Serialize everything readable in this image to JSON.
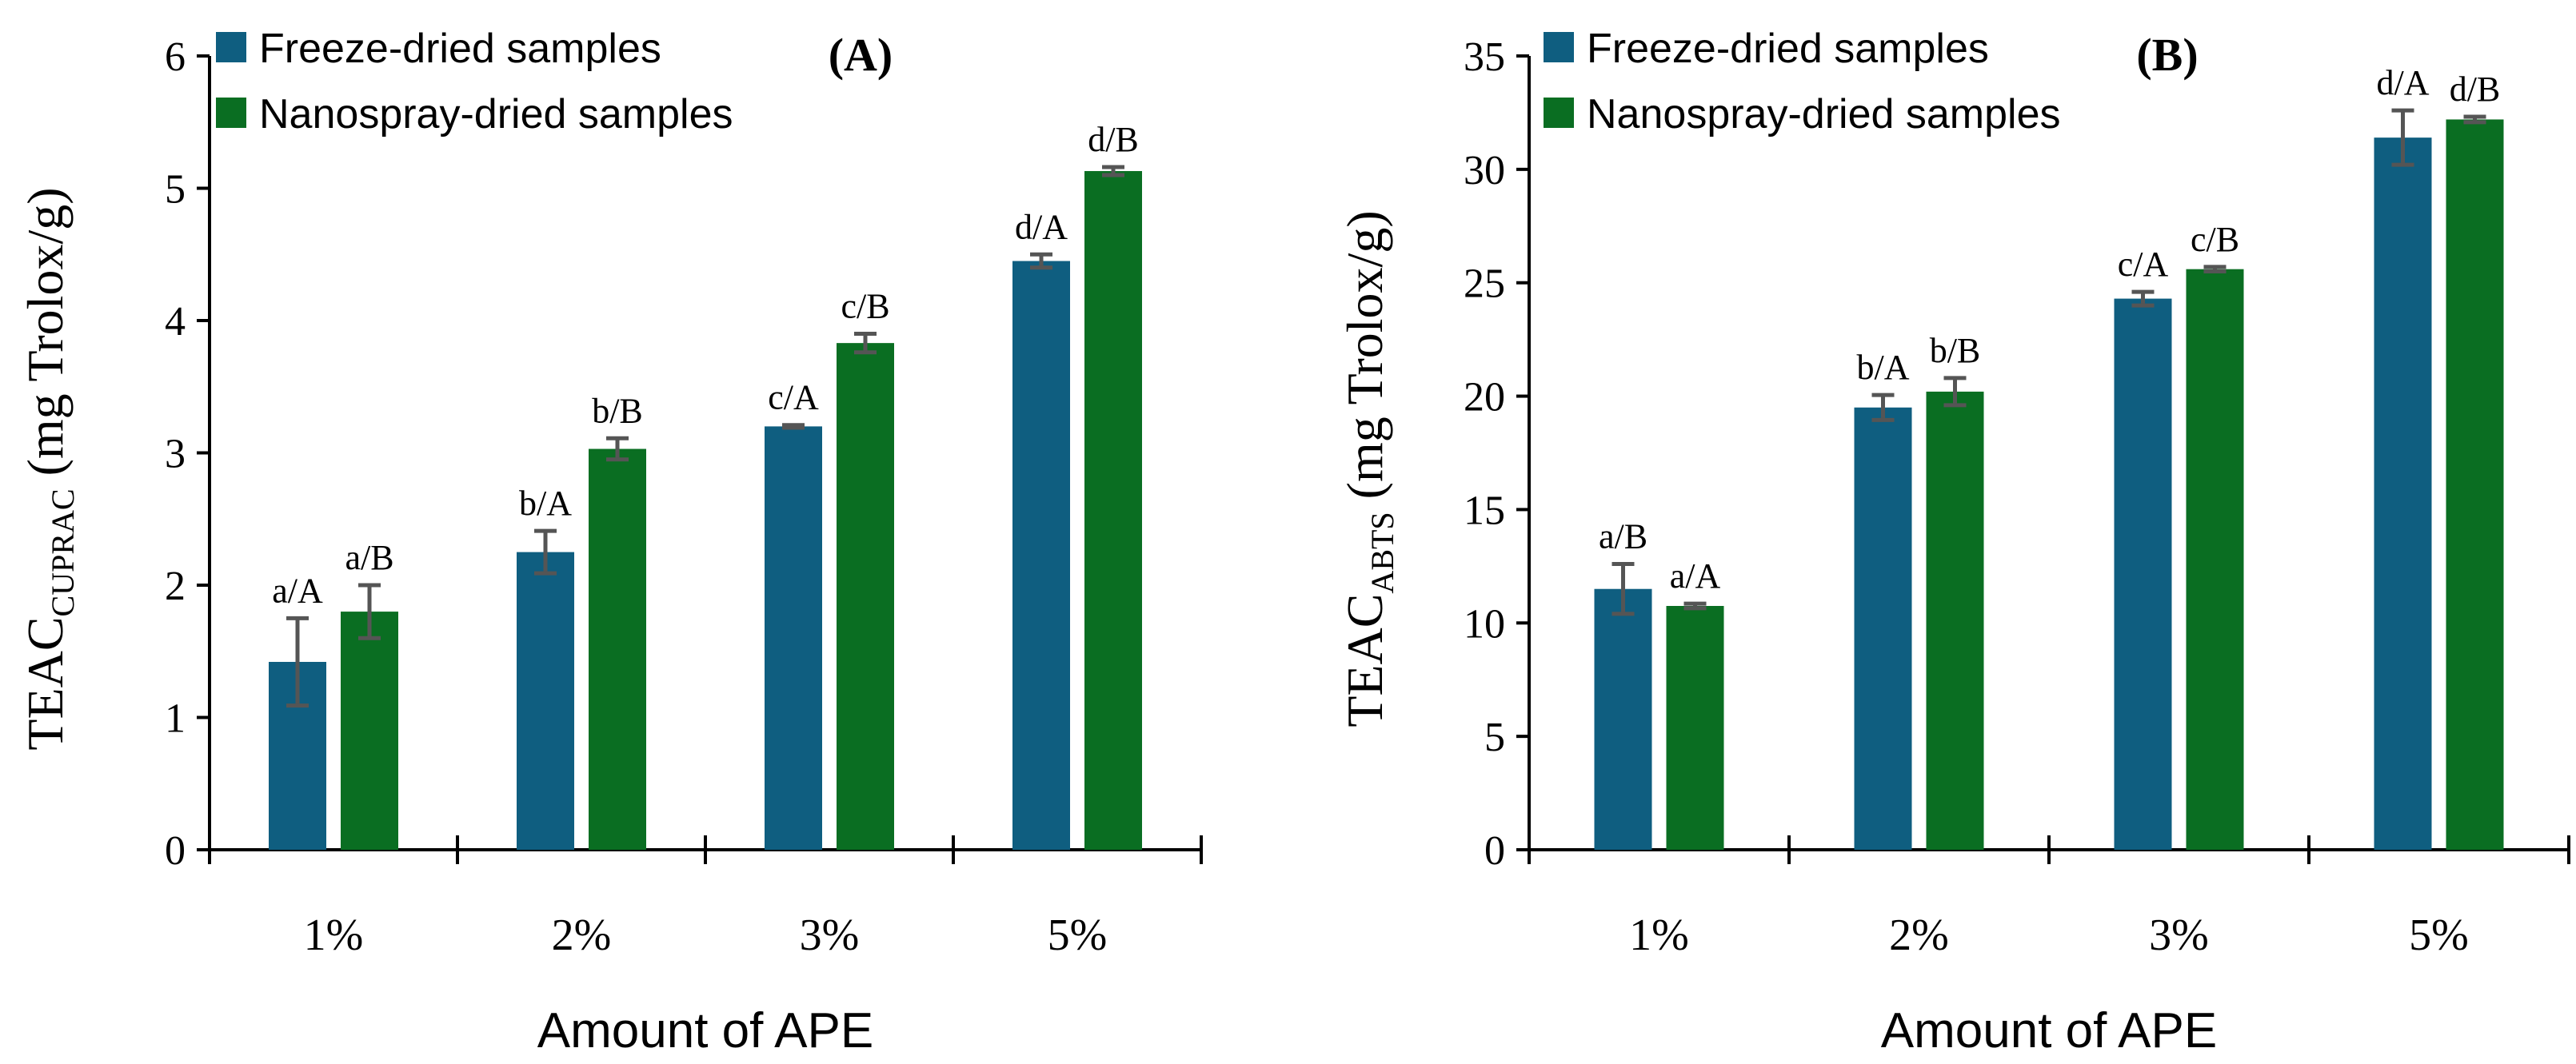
{
  "chart_data": [
    {
      "type": "bar",
      "panel": "(A)",
      "ylabel_main": "TEAC",
      "ylabel_sub": "CUPRAC",
      "ylabel_unit": " (mg Trolox/g)",
      "xlabel": "Amount of APE",
      "categories": [
        "1%",
        "2%",
        "3%",
        "5%"
      ],
      "ylim": [
        0,
        6
      ],
      "yticks": [
        0,
        1,
        2,
        3,
        4,
        5,
        6
      ],
      "legend_position": "top-left",
      "series": [
        {
          "name": "Freeze-dried samples",
          "color": "#0f5e80",
          "values": [
            1.42,
            2.25,
            3.2,
            4.45
          ],
          "errors": [
            0.33,
            0.16,
            0.01,
            0.05
          ],
          "labels": [
            "a/A",
            "b/A",
            "c/A",
            "d/A"
          ]
        },
        {
          "name": "Nanospray-dried samples",
          "color": "#0a6e22",
          "values": [
            1.8,
            3.03,
            3.83,
            5.13
          ],
          "errors": [
            0.2,
            0.08,
            0.07,
            0.03
          ],
          "labels": [
            "a/B",
            "b/B",
            "c/B",
            "d/B"
          ]
        }
      ]
    },
    {
      "type": "bar",
      "panel": "(B)",
      "ylabel_main": "TEAC",
      "ylabel_sub": "ABTS",
      "ylabel_unit": " (mg Trolox/g)",
      "xlabel": "Amount of APE",
      "categories": [
        "1%",
        "2%",
        "3%",
        "5%"
      ],
      "ylim": [
        0,
        35
      ],
      "yticks": [
        0,
        5,
        10,
        15,
        20,
        25,
        30,
        35
      ],
      "legend_position": "top-left",
      "series": [
        {
          "name": "Freeze-dried samples",
          "color": "#0f5e80",
          "values": [
            11.5,
            19.5,
            24.3,
            31.4
          ],
          "errors": [
            1.1,
            0.55,
            0.3,
            1.2
          ],
          "labels": [
            "a/B",
            "b/A",
            "c/A",
            "d/A"
          ]
        },
        {
          "name": "Nanospray-dried samples",
          "color": "#0a6e22",
          "values": [
            10.75,
            20.2,
            25.6,
            32.2
          ],
          "errors": [
            0.1,
            0.6,
            0.1,
            0.12
          ],
          "labels": [
            "a/A",
            "b/B",
            "c/B",
            "d/B"
          ]
        }
      ]
    }
  ]
}
